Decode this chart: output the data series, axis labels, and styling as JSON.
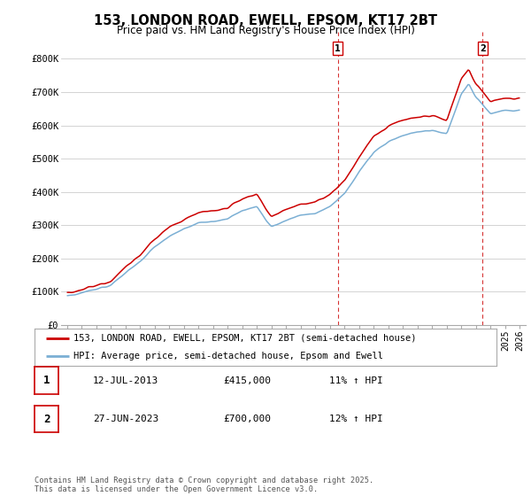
{
  "title": "153, LONDON ROAD, EWELL, EPSOM, KT17 2BT",
  "subtitle": "Price paid vs. HM Land Registry's House Price Index (HPI)",
  "ylim": [
    0,
    880000
  ],
  "yticks": [
    0,
    100000,
    200000,
    300000,
    400000,
    500000,
    600000,
    700000,
    800000
  ],
  "ytick_labels": [
    "£0",
    "£100K",
    "£200K",
    "£300K",
    "£400K",
    "£500K",
    "£600K",
    "£700K",
    "£800K"
  ],
  "line1_color": "#cc0000",
  "line2_color": "#7bafd4",
  "line1_label": "153, LONDON ROAD, EWELL, EPSOM, KT17 2BT (semi-detached house)",
  "line2_label": "HPI: Average price, semi-detached house, Epsom and Ewell",
  "table_data": [
    [
      "1",
      "12-JUL-2013",
      "£415,000",
      "11% ↑ HPI"
    ],
    [
      "2",
      "27-JUN-2023",
      "£700,000",
      "12% ↑ HPI"
    ]
  ],
  "footer": "Contains HM Land Registry data © Crown copyright and database right 2025.\nThis data is licensed under the Open Government Licence v3.0.",
  "bg_color": "#ffffff",
  "grid_color": "#cccccc"
}
